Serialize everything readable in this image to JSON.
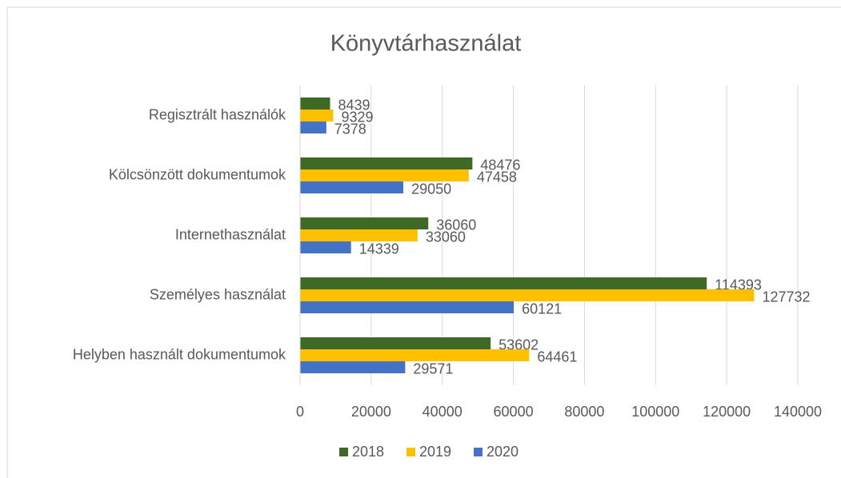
{
  "chart_data": {
    "type": "hbar",
    "title": "Könyvtárhasználat",
    "categories": [
      "Regisztrált használók",
      "Kölcsönzött dokumentumok",
      "Internethasználat",
      "Személyes használat",
      "Helyben használt dokumentumok"
    ],
    "series": [
      {
        "name": "2018",
        "color": "#3f6a26",
        "values": [
          8439,
          48476,
          36060,
          114393,
          53602
        ]
      },
      {
        "name": "2019",
        "color": "#ffc000",
        "values": [
          9329,
          47458,
          33060,
          127732,
          64461
        ]
      },
      {
        "name": "2020",
        "color": "#4472c4",
        "values": [
          7378,
          29050,
          14339,
          60121,
          29571
        ]
      }
    ],
    "xlim": [
      0,
      140000
    ],
    "xticks": [
      0,
      20000,
      40000,
      60000,
      80000,
      100000,
      120000,
      140000
    ],
    "grid": true,
    "legend": "bottom"
  }
}
